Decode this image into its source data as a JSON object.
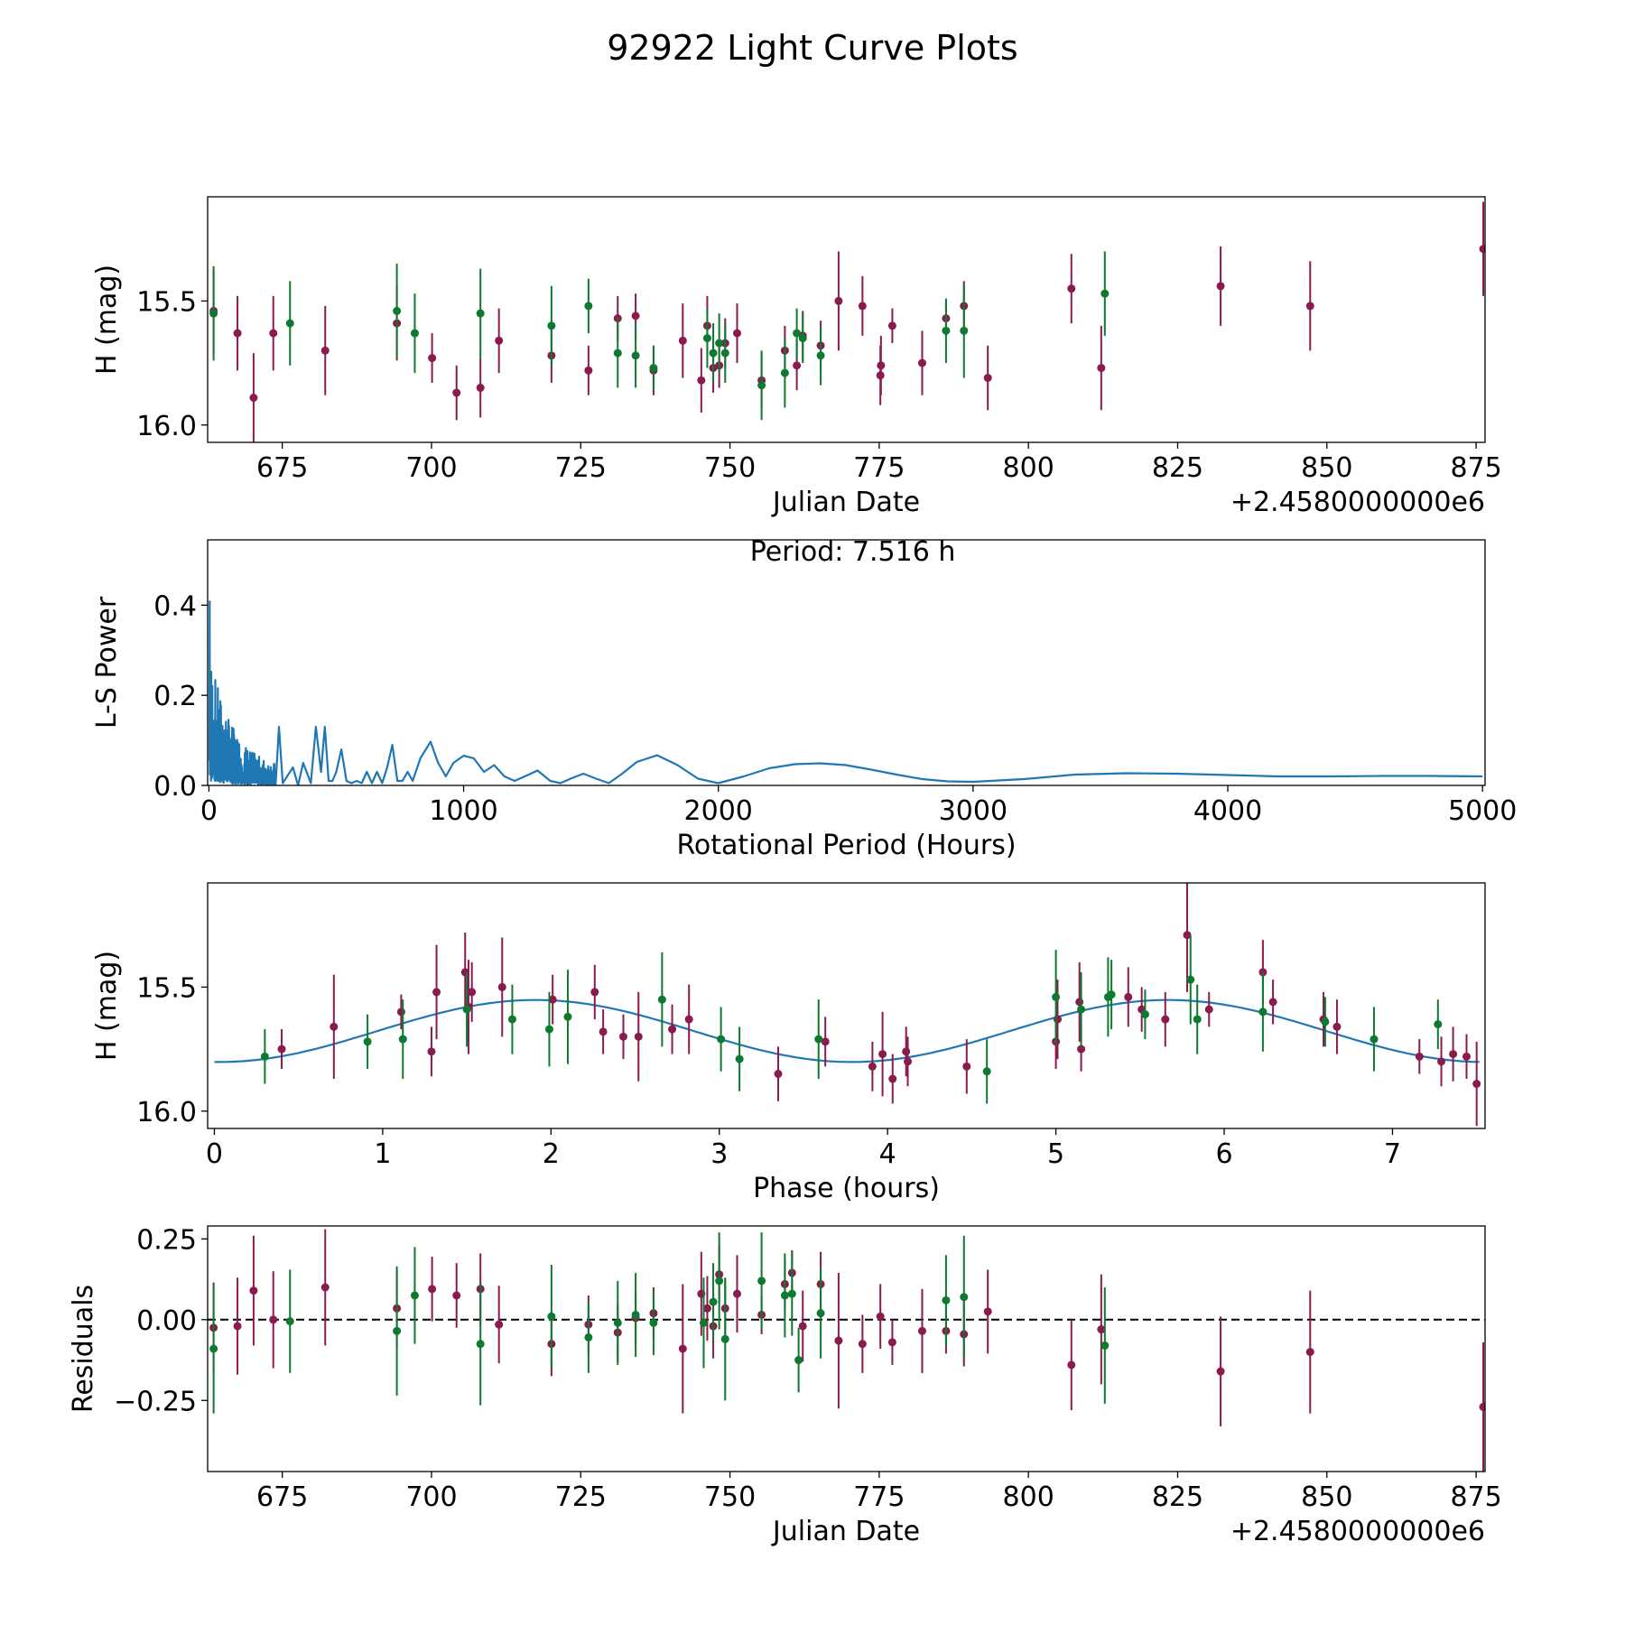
{
  "figure": {
    "title": "92922 Light Curve Plots"
  },
  "colors": {
    "primary": "#8b1a4f",
    "secondary": "#0e7a2f",
    "line": "#1f77b4",
    "axis": "#000000"
  },
  "chart_data": [
    {
      "type": "scatter",
      "name": "light-curve",
      "title": "",
      "xlabel": "Julian Date",
      "ylabel": "H (mag)",
      "x_offset_label": "+2.4580000000e6",
      "xlim": [
        662.5,
        876.5
      ],
      "ylim": [
        16.07,
        15.08
      ],
      "y_inverted": true,
      "xticks": [
        675,
        700,
        725,
        750,
        775,
        800,
        825,
        850,
        875
      ],
      "yticks": [
        16.0,
        15.5
      ],
      "yticklabels": [
        "16.0",
        "15.5"
      ],
      "series": [
        {
          "name": "filter-1",
          "color": "#8b1a4f",
          "x": [
            663.5,
            667.5,
            670.2,
            673.5,
            682.2,
            694.2,
            700.1,
            704.2,
            708.2,
            711.3,
            720.1,
            726.3,
            731.2,
            734.2,
            737.2,
            742.1,
            745.2,
            746.2,
            747.2,
            748.2,
            749.2,
            751.2,
            755.3,
            759.2,
            761.2,
            762.2,
            765.2,
            768.2,
            772.2,
            775.2,
            775.3,
            777.2,
            782.2,
            786.2,
            789.2,
            793.2,
            807.2,
            812.2,
            832.2,
            847.2,
            876.2
          ],
          "y": [
            15.54,
            15.63,
            15.89,
            15.63,
            15.7,
            15.59,
            15.73,
            15.87,
            15.85,
            15.66,
            15.72,
            15.78,
            15.57,
            15.56,
            15.78,
            15.66,
            15.82,
            15.6,
            15.77,
            15.76,
            15.67,
            15.63,
            15.82,
            15.7,
            15.76,
            15.64,
            15.68,
            15.5,
            15.52,
            15.8,
            15.76,
            15.6,
            15.75,
            15.57,
            15.52,
            15.81,
            15.45,
            15.77,
            15.44,
            15.52,
            15.29
          ],
          "err": [
            0.17,
            0.15,
            0.18,
            0.15,
            0.18,
            0.15,
            0.1,
            0.11,
            0.12,
            0.13,
            0.11,
            0.1,
            0.09,
            0.09,
            0.1,
            0.15,
            0.13,
            0.12,
            0.1,
            0.09,
            0.1,
            0.12,
            0.11,
            0.1,
            0.1,
            0.1,
            0.1,
            0.2,
            0.12,
            0.12,
            0.12,
            0.07,
            0.13,
            0.07,
            0.1,
            0.13,
            0.14,
            0.17,
            0.16,
            0.18,
            0.19
          ]
        },
        {
          "name": "filter-2",
          "color": "#0e7a2f",
          "x": [
            663.5,
            676.3,
            694.2,
            697.2,
            708.2,
            720.1,
            726.3,
            731.2,
            734.2,
            737.2,
            746.2,
            747.2,
            748.2,
            749.2,
            755.3,
            759.2,
            761.2,
            762.2,
            765.2,
            786.2,
            789.2,
            812.8
          ],
          "y": [
            15.55,
            15.59,
            15.54,
            15.63,
            15.55,
            15.6,
            15.52,
            15.71,
            15.72,
            15.77,
            15.65,
            15.71,
            15.67,
            15.71,
            15.84,
            15.79,
            15.63,
            15.65,
            15.72,
            15.62,
            15.62,
            15.47
          ],
          "err": [
            0.19,
            0.17,
            0.19,
            0.16,
            0.18,
            0.16,
            0.11,
            0.14,
            0.13,
            0.09,
            0.12,
            0.12,
            0.12,
            0.12,
            0.14,
            0.14,
            0.1,
            0.1,
            0.12,
            0.13,
            0.19,
            0.17
          ]
        }
      ]
    },
    {
      "type": "line",
      "name": "periodogram",
      "title": "",
      "annotation": "Period: 7.516 h",
      "xlabel": "Rotational Period (Hours)",
      "ylabel": "L-S Power",
      "xlim": [
        -5,
        5010
      ],
      "ylim": [
        0,
        0.545
      ],
      "xticks": [
        0,
        1000,
        2000,
        3000,
        4000,
        5000
      ],
      "yticks": [
        0.0,
        0.2,
        0.4
      ],
      "yticklabels": [
        "0.0",
        "0.2",
        "0.4"
      ],
      "series": [
        {
          "name": "L-S power",
          "color": "#1f77b4",
          "x": [
            420,
            440,
            455,
            470,
            485,
            500,
            520,
            540,
            560,
            580,
            600,
            620,
            640,
            660,
            680,
            700,
            720,
            740,
            760,
            780,
            800,
            830,
            870,
            900,
            930,
            960,
            1000,
            1040,
            1080,
            1120,
            1160,
            1200,
            1240,
            1290,
            1340,
            1380,
            1420,
            1470,
            1520,
            1570,
            1620,
            1680,
            1760,
            1840,
            1920,
            2000,
            2100,
            2200,
            2300,
            2400,
            2500,
            2600,
            2700,
            2800,
            2900,
            3000,
            3200,
            3400,
            3600,
            3800,
            4000,
            4200,
            4400,
            4600,
            4800,
            5000
          ],
          "y": [
            0.13,
            0.03,
            0.13,
            0.01,
            0.01,
            0.03,
            0.08,
            0.01,
            0.005,
            0.01,
            0.005,
            0.03,
            0.005,
            0.03,
            0.005,
            0.04,
            0.09,
            0.01,
            0.01,
            0.03,
            0.01,
            0.06,
            0.097,
            0.05,
            0.02,
            0.05,
            0.066,
            0.06,
            0.03,
            0.045,
            0.02,
            0.01,
            0.02,
            0.033,
            0.01,
            0.005,
            0.015,
            0.026,
            0.015,
            0.005,
            0.025,
            0.052,
            0.067,
            0.045,
            0.015,
            0.005,
            0.02,
            0.038,
            0.047,
            0.049,
            0.045,
            0.035,
            0.024,
            0.014,
            0.009,
            0.008,
            0.014,
            0.024,
            0.027,
            0.026,
            0.023,
            0.02,
            0.02,
            0.021,
            0.021,
            0.02
          ]
        }
      ]
    },
    {
      "type": "scatter",
      "name": "phased",
      "title": "",
      "xlabel": "Phase (hours)",
      "ylabel": "H (mag)",
      "xlim": [
        -0.04,
        7.55
      ],
      "ylim": [
        16.07,
        15.08
      ],
      "y_inverted": true,
      "xticks": [
        0,
        1,
        2,
        3,
        4,
        5,
        6,
        7
      ],
      "yticks": [
        16.0,
        15.5
      ],
      "yticklabels": [
        "16.0",
        "15.5"
      ],
      "fit": {
        "name": "sinusoid fit",
        "color": "#1f77b4",
        "mean": 15.677,
        "amplitude": 0.125,
        "period": 3.758,
        "phase_of_max": 0.03,
        "x_range": [
          0,
          7.516
        ]
      },
      "series": [
        {
          "name": "filter-1",
          "color": "#8b1a4f",
          "x": [
            0.4,
            0.71,
            1.11,
            1.29,
            1.32,
            1.49,
            1.51,
            1.53,
            1.71,
            2.01,
            2.26,
            2.31,
            2.43,
            2.52,
            2.72,
            2.82,
            3.35,
            3.63,
            3.91,
            3.97,
            4.03,
            4.11,
            4.12,
            4.47,
            5.0,
            5.01,
            5.14,
            5.15,
            5.43,
            5.51,
            5.65,
            5.78,
            5.91,
            6.23,
            6.29,
            6.59,
            6.67,
            7.16,
            7.29,
            7.36,
            7.44,
            7.5
          ],
          "y": [
            15.75,
            15.66,
            15.6,
            15.76,
            15.52,
            15.44,
            15.58,
            15.52,
            15.5,
            15.55,
            15.52,
            15.68,
            15.7,
            15.7,
            15.67,
            15.63,
            15.85,
            15.72,
            15.82,
            15.77,
            15.87,
            15.76,
            15.8,
            15.82,
            15.72,
            15.63,
            15.56,
            15.75,
            15.54,
            15.59,
            15.63,
            15.29,
            15.59,
            15.44,
            15.56,
            15.63,
            15.66,
            15.78,
            15.8,
            15.77,
            15.78,
            15.89
          ],
          "err": [
            0.08,
            0.21,
            0.07,
            0.1,
            0.19,
            0.16,
            0.19,
            0.12,
            0.2,
            0.1,
            0.11,
            0.09,
            0.09,
            0.18,
            0.1,
            0.14,
            0.11,
            0.1,
            0.1,
            0.17,
            0.1,
            0.1,
            0.1,
            0.11,
            0.11,
            0.16,
            0.16,
            0.09,
            0.12,
            0.09,
            0.11,
            0.23,
            0.07,
            0.13,
            0.09,
            0.11,
            0.11,
            0.07,
            0.1,
            0.11,
            0.09,
            0.17
          ]
        },
        {
          "name": "filter-2",
          "color": "#0e7a2f",
          "x": [
            0.3,
            0.91,
            1.12,
            1.5,
            1.77,
            1.99,
            2.1,
            2.66,
            3.01,
            3.12,
            3.59,
            4.59,
            5.0,
            5.15,
            5.31,
            5.33,
            5.53,
            5.8,
            5.84,
            6.23,
            6.6,
            6.89,
            7.27
          ],
          "y": [
            15.78,
            15.72,
            15.71,
            15.59,
            15.63,
            15.67,
            15.62,
            15.55,
            15.71,
            15.79,
            15.71,
            15.84,
            15.54,
            15.59,
            15.54,
            15.53,
            15.61,
            15.47,
            15.63,
            15.6,
            15.64,
            15.71,
            15.65
          ],
          "err": [
            0.11,
            0.11,
            0.16,
            0.15,
            0.14,
            0.15,
            0.19,
            0.19,
            0.13,
            0.13,
            0.16,
            0.13,
            0.19,
            0.15,
            0.16,
            0.14,
            0.1,
            0.18,
            0.14,
            0.16,
            0.1,
            0.13,
            0.1
          ]
        }
      ]
    },
    {
      "type": "scatter",
      "name": "residuals",
      "title": "",
      "xlabel": "Julian Date",
      "ylabel": "Residuals",
      "x_offset_label": "+2.4580000000e6",
      "reference_line": 0,
      "xlim": [
        662.5,
        876.5
      ],
      "ylim": [
        -0.47,
        0.29
      ],
      "xticks": [
        675,
        700,
        725,
        750,
        775,
        800,
        825,
        850,
        875
      ],
      "yticks": [
        0.25,
        0.0,
        -0.25
      ],
      "yticklabels": [
        "0.25",
        "0.00",
        "−0.25"
      ],
      "series": [
        {
          "name": "filter-1",
          "color": "#8b1a4f",
          "x": [
            663.5,
            667.5,
            670.2,
            673.5,
            682.2,
            694.2,
            700.1,
            704.2,
            708.2,
            711.3,
            720.1,
            726.3,
            731.2,
            734.2,
            737.2,
            742.1,
            745.2,
            746.2,
            747.2,
            748.2,
            749.2,
            751.2,
            755.3,
            759.2,
            760.4,
            762.2,
            765.2,
            768.2,
            772.2,
            775.2,
            777.2,
            782.2,
            786.2,
            789.2,
            793.2,
            807.2,
            812.2,
            832.2,
            847.2,
            876.2
          ],
          "y": [
            -0.025,
            -0.02,
            0.09,
            0.0,
            0.1,
            0.035,
            0.095,
            0.075,
            0.095,
            -0.015,
            -0.075,
            -0.015,
            -0.04,
            0.005,
            0.02,
            -0.09,
            0.08,
            0.035,
            -0.02,
            0.14,
            0.035,
            0.08,
            0.015,
            0.11,
            0.145,
            -0.02,
            0.11,
            -0.065,
            -0.075,
            0.01,
            -0.07,
            -0.035,
            -0.035,
            -0.045,
            0.025,
            -0.14,
            -0.03,
            -0.16,
            -0.1,
            -0.27
          ],
          "err": [
            0.14,
            0.15,
            0.17,
            0.15,
            0.18,
            0.12,
            0.1,
            0.1,
            0.11,
            0.12,
            0.1,
            0.09,
            0.09,
            0.08,
            0.08,
            0.2,
            0.13,
            0.1,
            0.1,
            0.09,
            0.09,
            0.12,
            0.06,
            0.08,
            0.07,
            0.11,
            0.1,
            0.21,
            0.09,
            0.1,
            0.07,
            0.13,
            0.07,
            0.1,
            0.13,
            0.14,
            0.17,
            0.17,
            0.19,
            0.2
          ]
        },
        {
          "name": "filter-2",
          "color": "#0e7a2f",
          "x": [
            663.5,
            676.3,
            694.2,
            697.2,
            708.2,
            720.1,
            726.3,
            731.2,
            734.2,
            737.2,
            745.6,
            747.2,
            748.2,
            749.2,
            755.3,
            759.2,
            760.4,
            761.5,
            765.2,
            786.2,
            789.2,
            812.8
          ],
          "y": [
            -0.09,
            -0.005,
            -0.035,
            0.075,
            -0.075,
            0.01,
            -0.055,
            -0.01,
            0.015,
            -0.01,
            -0.01,
            0.055,
            0.12,
            -0.06,
            0.12,
            0.075,
            0.08,
            -0.125,
            0.02,
            0.06,
            0.07,
            -0.08
          ],
          "err": [
            0.2,
            0.16,
            0.2,
            0.15,
            0.19,
            0.16,
            0.11,
            0.13,
            0.13,
            0.1,
            0.14,
            0.12,
            0.15,
            0.19,
            0.15,
            0.13,
            0.13,
            0.1,
            0.14,
            0.14,
            0.19,
            0.18
          ]
        }
      ]
    }
  ]
}
